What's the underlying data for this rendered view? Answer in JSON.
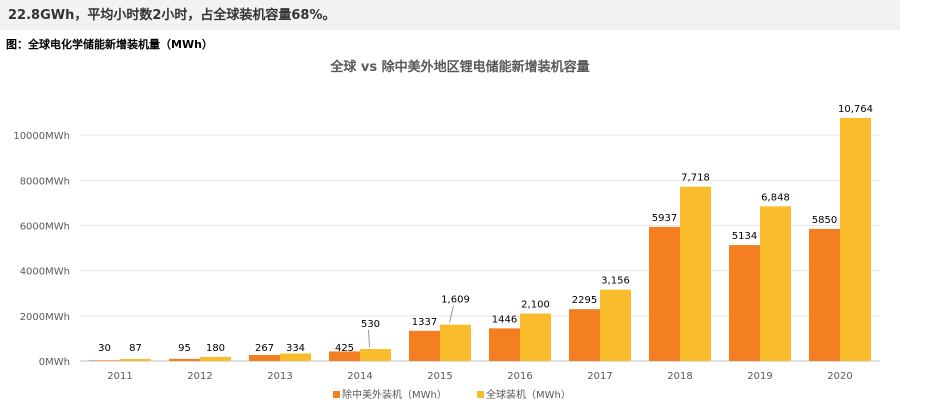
{
  "intro_text": "22.8GWh，平均小时数2小时，占全球装机容量68%。",
  "figure_caption": "图：全球电化学储能新增装机量（MWh）",
  "colors": {
    "series_a": "#F47F20",
    "series_b": "#FBBC2C",
    "axis_text": "#595959",
    "grid": "#e6e6e6",
    "label_text": "#000000"
  },
  "chart_data": {
    "type": "bar",
    "title": "全球 vs 除中美外地区锂电储能新增装机容量",
    "xlabel": "",
    "ylabel": "",
    "ylim": [
      0,
      12000
    ],
    "y_ticks": [
      {
        "value": 0,
        "label": "0MWh"
      },
      {
        "value": 2000,
        "label": "2000MWh"
      },
      {
        "value": 4000,
        "label": "4000MWh"
      },
      {
        "value": 6000,
        "label": "6000MWh"
      },
      {
        "value": 8000,
        "label": "8000MWh"
      },
      {
        "value": 10000,
        "label": "10000MWh"
      }
    ],
    "grid": true,
    "legend_position": "bottom",
    "categories": [
      "2011",
      "2012",
      "2013",
      "2014",
      "2015",
      "2016",
      "2017",
      "2018",
      "2019",
      "2020"
    ],
    "series": [
      {
        "name": "除中美外装机（MWh）",
        "values": [
          30,
          95,
          267,
          425,
          1337,
          1446,
          2295,
          5937,
          5134,
          5850
        ],
        "data_labels": [
          "30",
          "95",
          "267",
          "425",
          "1337",
          "1446",
          "2295",
          "5937",
          "5134",
          "5850"
        ]
      },
      {
        "name": "全球装机（MWh）",
        "values": [
          87,
          180,
          334,
          530,
          1609,
          2100,
          3156,
          7718,
          6848,
          10764
        ],
        "data_labels": [
          "87",
          "180",
          "334",
          "530",
          "1,609",
          "2,100",
          "3,156",
          "7,718",
          "6,848",
          "10,764"
        ]
      }
    ]
  }
}
